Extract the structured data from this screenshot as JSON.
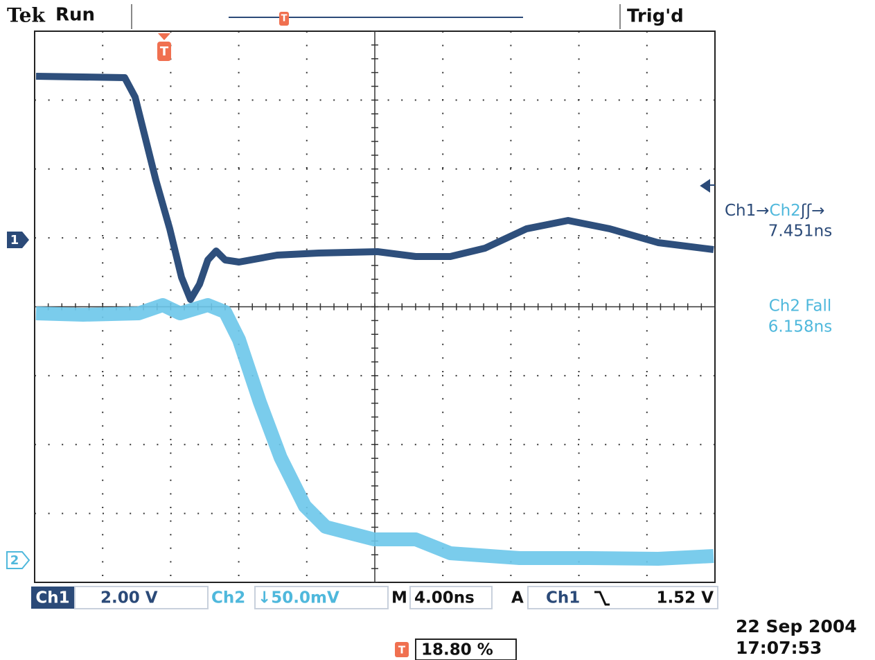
{
  "header": {
    "brand": "Tek",
    "state": "Run",
    "trigger_status": "Trig'd"
  },
  "markers": {
    "trigger": "T",
    "ch1": "1",
    "ch2": "2"
  },
  "measurements": [
    {
      "label_parts": [
        "Ch1→",
        "Ch2",
        "ʃʃ→"
      ],
      "value": "7.451ns"
    },
    {
      "label": "Ch2 Fall",
      "value": "6.158ns"
    }
  ],
  "status_bar": {
    "ch1_label": "Ch1",
    "ch1_scale": "2.00 V",
    "ch2_label": "Ch2",
    "ch2_scale": "↓50.0mV",
    "time_label": "M",
    "time_scale": "4.00ns",
    "trigger_label": "A",
    "trigger_source": "Ch1",
    "trigger_level": "1.52 V"
  },
  "trigger_position": "18.80 %",
  "date": "22 Sep 2004",
  "time": "17:07:53"
}
